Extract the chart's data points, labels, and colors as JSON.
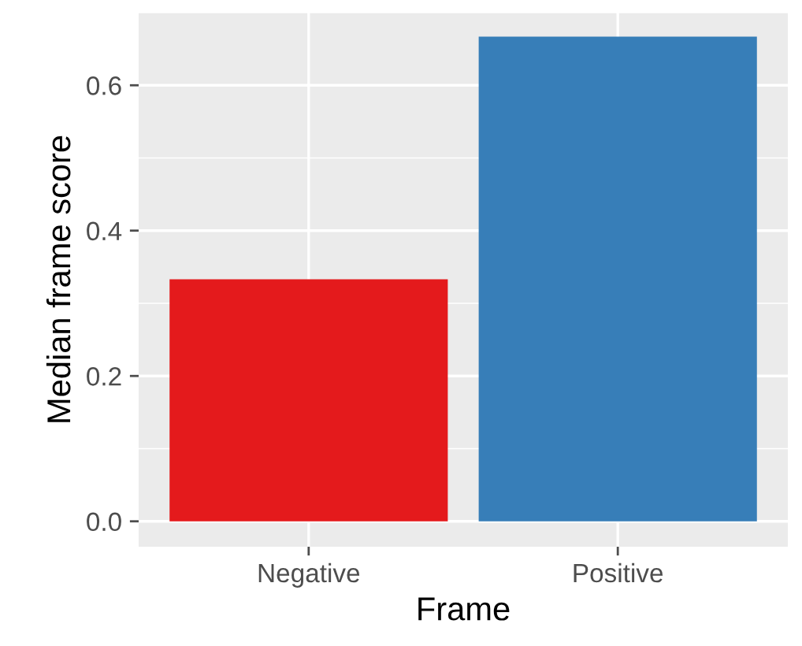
{
  "chart_data": {
    "type": "bar",
    "xlabel": "Frame",
    "ylabel": "Median frame score",
    "categories": [
      "Negative",
      "Positive"
    ],
    "values": [
      0.333,
      0.667
    ],
    "colors": [
      "#e41a1c",
      "#377eb8"
    ],
    "ylim": [
      -0.035,
      0.7
    ],
    "yticks": [
      {
        "value": 0.0,
        "label": "0.0"
      },
      {
        "value": 0.2,
        "label": "0.2"
      },
      {
        "value": 0.4,
        "label": "0.4"
      },
      {
        "value": 0.6,
        "label": "0.6"
      }
    ],
    "grid": true,
    "legend": false
  }
}
